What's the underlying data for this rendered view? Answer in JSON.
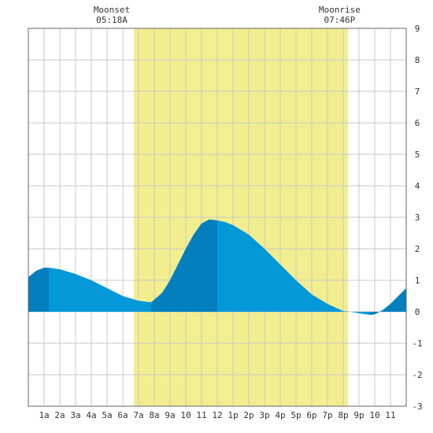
{
  "chart_data": {
    "type": "area",
    "title": "",
    "xlabel": "",
    "ylabel": "",
    "xlim": [
      0,
      24
    ],
    "ylim": [
      -3,
      9
    ],
    "yticks": [
      -3,
      -2,
      -1,
      0,
      1,
      2,
      3,
      4,
      5,
      6,
      7,
      8,
      9
    ],
    "xtick_labels": [
      "1a",
      "2a",
      "3a",
      "4a",
      "5a",
      "6a",
      "7a",
      "8a",
      "9a",
      "10",
      "11",
      "12",
      "1p",
      "2p",
      "3p",
      "4p",
      "5p",
      "6p",
      "7p",
      "8p",
      "9p",
      "10",
      "11"
    ],
    "daylight": {
      "start": 6.7,
      "end": 20.3
    },
    "moon_events": [
      {
        "label": "Moonset",
        "time": "05:18A",
        "x": 5.3
      },
      {
        "label": "Moonrise",
        "time": "07:46P",
        "x": 19.77
      }
    ],
    "tide_extremes": [
      {
        "x": 1.3,
        "y": 1.4
      },
      {
        "x": 7.8,
        "y": 0.3
      },
      {
        "x": 12.0,
        "y": 2.9
      },
      {
        "x": 21.7,
        "y": -0.1
      }
    ],
    "dark_bands": [
      [
        0,
        1.3
      ],
      [
        7.8,
        12.0
      ],
      [
        21.7,
        24
      ]
    ],
    "series": [
      {
        "x": [
          0,
          0.5,
          1.0,
          1.3,
          2.0,
          3.0,
          4.0,
          5.0,
          6.0,
          7.0,
          7.8,
          8.5,
          9.0,
          9.5,
          10.0,
          10.5,
          11.0,
          11.5,
          12.0,
          12.5,
          13.0,
          14.0,
          15.0,
          16.0,
          17.0,
          18.0,
          19.0,
          20.0,
          20.5,
          21.0,
          21.7,
          22.0,
          22.5,
          23.0,
          23.5,
          24.0
        ],
        "values": [
          1.1,
          1.3,
          1.4,
          1.4,
          1.35,
          1.2,
          1.0,
          0.75,
          0.5,
          0.35,
          0.3,
          0.6,
          1.0,
          1.5,
          2.0,
          2.45,
          2.8,
          2.93,
          2.9,
          2.85,
          2.75,
          2.45,
          2.0,
          1.5,
          1.0,
          0.55,
          0.25,
          0.02,
          0.0,
          -0.05,
          -0.1,
          -0.08,
          0.05,
          0.25,
          0.5,
          0.75
        ]
      }
    ],
    "colors": {
      "daylight": "#f2ee8e",
      "tide": "#0598d8",
      "tide_dark": "#047fbd",
      "grid": "#c8c8c8",
      "text": "#333333"
    },
    "grid": true
  }
}
